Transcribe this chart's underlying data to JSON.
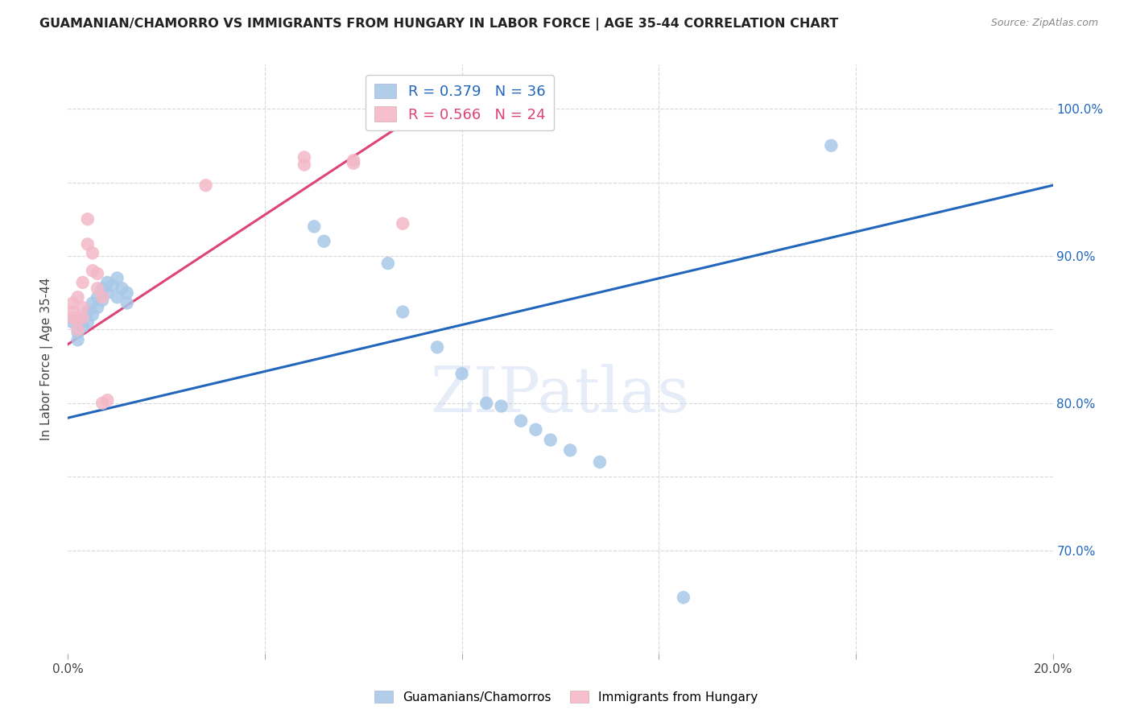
{
  "title": "GUAMANIAN/CHAMORRO VS IMMIGRANTS FROM HUNGARY IN LABOR FORCE | AGE 35-44 CORRELATION CHART",
  "source": "Source: ZipAtlas.com",
  "ylabel": "In Labor Force | Age 35-44",
  "xlim": [
    0.0,
    0.2
  ],
  "ylim": [
    0.63,
    1.03
  ],
  "r_blue": 0.379,
  "n_blue": 36,
  "r_pink": 0.566,
  "n_pink": 24,
  "legend_label_blue": "Guamanians/Chamorros",
  "legend_label_pink": "Immigrants from Hungary",
  "blue_color": "#a8c8e8",
  "pink_color": "#f4b8c8",
  "line_blue": "#2266bb",
  "line_pink": "#dd4477",
  "blue_scatter": [
    [
      0.001,
      0.855
    ],
    [
      0.002,
      0.848
    ],
    [
      0.002,
      0.843
    ],
    [
      0.003,
      0.858
    ],
    [
      0.003,
      0.852
    ],
    [
      0.004,
      0.862
    ],
    [
      0.004,
      0.855
    ],
    [
      0.005,
      0.868
    ],
    [
      0.005,
      0.86
    ],
    [
      0.006,
      0.872
    ],
    [
      0.006,
      0.865
    ],
    [
      0.007,
      0.878
    ],
    [
      0.007,
      0.87
    ],
    [
      0.008,
      0.882
    ],
    [
      0.008,
      0.875
    ],
    [
      0.009,
      0.88
    ],
    [
      0.01,
      0.885
    ],
    [
      0.01,
      0.872
    ],
    [
      0.011,
      0.878
    ],
    [
      0.012,
      0.875
    ],
    [
      0.012,
      0.868
    ],
    [
      0.05,
      0.92
    ],
    [
      0.052,
      0.91
    ],
    [
      0.065,
      0.895
    ],
    [
      0.068,
      0.862
    ],
    [
      0.075,
      0.838
    ],
    [
      0.08,
      0.82
    ],
    [
      0.085,
      0.8
    ],
    [
      0.088,
      0.798
    ],
    [
      0.092,
      0.788
    ],
    [
      0.095,
      0.782
    ],
    [
      0.098,
      0.775
    ],
    [
      0.102,
      0.768
    ],
    [
      0.108,
      0.76
    ],
    [
      0.125,
      0.668
    ],
    [
      0.155,
      0.975
    ]
  ],
  "pink_scatter": [
    [
      0.001,
      0.858
    ],
    [
      0.001,
      0.862
    ],
    [
      0.001,
      0.868
    ],
    [
      0.002,
      0.872
    ],
    [
      0.002,
      0.858
    ],
    [
      0.002,
      0.85
    ],
    [
      0.003,
      0.882
    ],
    [
      0.003,
      0.865
    ],
    [
      0.003,
      0.858
    ],
    [
      0.004,
      0.925
    ],
    [
      0.004,
      0.908
    ],
    [
      0.005,
      0.902
    ],
    [
      0.005,
      0.89
    ],
    [
      0.006,
      0.888
    ],
    [
      0.006,
      0.878
    ],
    [
      0.007,
      0.872
    ],
    [
      0.007,
      0.8
    ],
    [
      0.008,
      0.802
    ],
    [
      0.028,
      0.948
    ],
    [
      0.048,
      0.962
    ],
    [
      0.048,
      0.967
    ],
    [
      0.058,
      0.963
    ],
    [
      0.058,
      0.965
    ],
    [
      0.068,
      0.922
    ]
  ],
  "blue_line_endpoints": [
    [
      0.0,
      0.79
    ],
    [
      0.2,
      0.948
    ]
  ],
  "pink_line_endpoints": [
    [
      0.0,
      0.84
    ],
    [
      0.075,
      1.005
    ]
  ],
  "watermark": "ZIPatlas",
  "background_color": "#ffffff",
  "grid_color": "#d8d8d8"
}
